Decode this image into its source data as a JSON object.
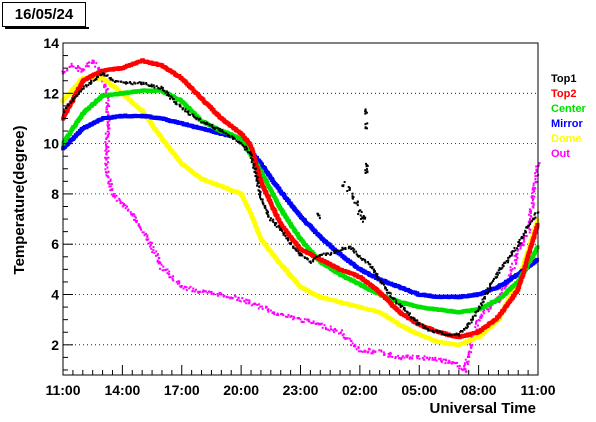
{
  "header": {
    "date": "16/05/24"
  },
  "chart_data": {
    "type": "scatter",
    "title": "",
    "xlabel": "Universal Time",
    "ylabel": "Temperature(degree)",
    "x_unit": "hours since 11:00 UT",
    "xlim": [
      0,
      24
    ],
    "ylim": [
      0.8,
      14
    ],
    "x_ticks": [
      {
        "v": 0,
        "label": "11:00"
      },
      {
        "v": 3,
        "label": "14:00"
      },
      {
        "v": 6,
        "label": "17:00"
      },
      {
        "v": 9,
        "label": "20:00"
      },
      {
        "v": 12,
        "label": "23:00"
      },
      {
        "v": 15,
        "label": "02:00"
      },
      {
        "v": 18,
        "label": "05:00"
      },
      {
        "v": 21,
        "label": "08:00"
      },
      {
        "v": 24,
        "label": "11:00"
      }
    ],
    "y_ticks": [
      2,
      4,
      6,
      8,
      10,
      12,
      14
    ],
    "grid": "horizontal dotted",
    "legend_position": "right",
    "series": [
      {
        "name": "Top1",
        "color": "#000000",
        "points": [
          [
            0,
            11.3
          ],
          [
            1,
            12.2
          ],
          [
            2,
            12.8
          ],
          [
            2.5,
            12.5
          ],
          [
            3,
            12.4
          ],
          [
            3.5,
            12.4
          ],
          [
            4,
            12.4
          ],
          [
            4.5,
            12.3
          ],
          [
            5,
            12.2
          ],
          [
            5.5,
            11.8
          ],
          [
            6,
            11.4
          ],
          [
            7,
            10.9
          ],
          [
            8,
            10.5
          ],
          [
            9,
            10.0
          ],
          [
            9.5,
            9.6
          ],
          [
            9.8,
            8.6
          ],
          [
            10,
            7.8
          ],
          [
            10.5,
            7.0
          ],
          [
            11,
            6.6
          ],
          [
            11.5,
            6.0
          ],
          [
            12,
            5.6
          ],
          [
            12.5,
            5.3
          ],
          [
            13,
            5.6
          ],
          [
            13.5,
            5.6
          ],
          [
            14,
            5.8
          ],
          [
            14.5,
            5.9
          ],
          [
            15,
            5.5
          ],
          [
            15.5,
            5.2
          ],
          [
            16,
            4.6
          ],
          [
            16.5,
            4.0
          ],
          [
            17,
            3.6
          ],
          [
            17.5,
            3.2
          ],
          [
            18,
            2.8
          ],
          [
            18.5,
            2.6
          ],
          [
            19,
            2.5
          ],
          [
            19.5,
            2.4
          ],
          [
            20,
            2.4
          ],
          [
            20.5,
            2.8
          ],
          [
            21,
            3.4
          ],
          [
            21.5,
            4.2
          ],
          [
            22,
            4.9
          ],
          [
            22.5,
            5.4
          ],
          [
            23,
            6.0
          ],
          [
            23.5,
            6.7
          ],
          [
            24,
            7.3
          ]
        ]
      },
      {
        "name": "Top1_outliers",
        "color": "#000000",
        "points": [
          [
            14.2,
            8.4
          ],
          [
            14.4,
            8.2
          ],
          [
            14.6,
            7.9
          ],
          [
            14.8,
            7.6
          ],
          [
            15,
            7.3
          ],
          [
            15.1,
            7.1
          ],
          [
            15.2,
            7.0
          ],
          [
            15.3,
            8.9
          ],
          [
            15.4,
            9.1
          ],
          [
            15.3,
            11.3
          ],
          [
            15.35,
            10.7
          ],
          [
            12.9,
            7.1
          ]
        ]
      },
      {
        "name": "Top2",
        "color": "#ff0000",
        "points": [
          [
            0,
            11.0
          ],
          [
            1,
            12.5
          ],
          [
            2,
            12.9
          ],
          [
            3,
            13.0
          ],
          [
            4,
            13.3
          ],
          [
            5,
            13.1
          ],
          [
            6,
            12.6
          ],
          [
            7,
            11.8
          ],
          [
            8,
            11.0
          ],
          [
            9,
            10.4
          ],
          [
            9.5,
            9.9
          ],
          [
            10,
            8.5
          ],
          [
            11,
            6.8
          ],
          [
            12,
            5.8
          ],
          [
            13,
            5.4
          ],
          [
            14,
            5.0
          ],
          [
            15,
            4.7
          ],
          [
            16,
            4.1
          ],
          [
            17,
            3.3
          ],
          [
            18,
            2.8
          ],
          [
            19,
            2.5
          ],
          [
            20,
            2.3
          ],
          [
            21,
            2.5
          ],
          [
            22,
            3.1
          ],
          [
            23,
            4.2
          ],
          [
            24,
            6.8
          ]
        ]
      },
      {
        "name": "Center",
        "color": "#00e000",
        "points": [
          [
            0,
            10.0
          ],
          [
            1,
            11.2
          ],
          [
            2,
            11.9
          ],
          [
            3,
            12.0
          ],
          [
            4,
            12.1
          ],
          [
            5,
            12.1
          ],
          [
            6,
            11.7
          ],
          [
            7,
            10.9
          ],
          [
            8,
            10.5
          ],
          [
            9,
            10.2
          ],
          [
            10,
            8.9
          ],
          [
            11,
            7.4
          ],
          [
            12,
            6.2
          ],
          [
            13,
            5.3
          ],
          [
            14,
            4.8
          ],
          [
            15,
            4.4
          ],
          [
            16,
            4.0
          ],
          [
            17,
            3.7
          ],
          [
            18,
            3.5
          ],
          [
            19,
            3.4
          ],
          [
            20,
            3.3
          ],
          [
            21,
            3.4
          ],
          [
            22,
            3.8
          ],
          [
            23,
            4.5
          ],
          [
            24,
            5.9
          ]
        ]
      },
      {
        "name": "Mirror",
        "color": "#0000ff",
        "points": [
          [
            0,
            9.8
          ],
          [
            1,
            10.6
          ],
          [
            2,
            11.0
          ],
          [
            3,
            11.1
          ],
          [
            4,
            11.1
          ],
          [
            5,
            11.0
          ],
          [
            6,
            10.8
          ],
          [
            7,
            10.6
          ],
          [
            8,
            10.4
          ],
          [
            9,
            10.2
          ],
          [
            10,
            9.2
          ],
          [
            11,
            8.1
          ],
          [
            12,
            7.1
          ],
          [
            13,
            6.3
          ],
          [
            14,
            5.6
          ],
          [
            15,
            5.0
          ],
          [
            16,
            4.6
          ],
          [
            17,
            4.3
          ],
          [
            18,
            4.0
          ],
          [
            19,
            3.9
          ],
          [
            20,
            3.9
          ],
          [
            21,
            4.0
          ],
          [
            22,
            4.3
          ],
          [
            23,
            4.8
          ],
          [
            24,
            5.4
          ]
        ]
      },
      {
        "name": "Dome",
        "color": "#ffff00",
        "points": [
          [
            0,
            11.7
          ],
          [
            1,
            12.6
          ],
          [
            2,
            12.6
          ],
          [
            3,
            12.0
          ],
          [
            4,
            11.3
          ],
          [
            5,
            10.2
          ],
          [
            6,
            9.2
          ],
          [
            7,
            8.6
          ],
          [
            8,
            8.3
          ],
          [
            9,
            8.0
          ],
          [
            9.5,
            7.2
          ],
          [
            10,
            6.2
          ],
          [
            11,
            5.2
          ],
          [
            12,
            4.3
          ],
          [
            13,
            3.9
          ],
          [
            14,
            3.7
          ],
          [
            15,
            3.5
          ],
          [
            16,
            3.3
          ],
          [
            17,
            2.8
          ],
          [
            18,
            2.4
          ],
          [
            19,
            2.1
          ],
          [
            20,
            2.0
          ],
          [
            21,
            2.3
          ],
          [
            22,
            3.0
          ],
          [
            23,
            4.5
          ],
          [
            24,
            7.0
          ]
        ]
      },
      {
        "name": "Out",
        "color": "#ff00ff",
        "points": [
          [
            0,
            12.8
          ],
          [
            0.5,
            13.1
          ],
          [
            1,
            12.9
          ],
          [
            1.5,
            13.3
          ],
          [
            2,
            12.7
          ],
          [
            2.3,
            11.8
          ],
          [
            2.2,
            9.0
          ],
          [
            2.5,
            8.0
          ],
          [
            3,
            7.6
          ],
          [
            3.5,
            7.2
          ],
          [
            4,
            6.6
          ],
          [
            4.5,
            5.9
          ],
          [
            5,
            5.1
          ],
          [
            5.5,
            4.7
          ],
          [
            6,
            4.3
          ],
          [
            7,
            4.1
          ],
          [
            8,
            4.0
          ],
          [
            9,
            3.8
          ],
          [
            10,
            3.5
          ],
          [
            11,
            3.2
          ],
          [
            12,
            3.0
          ],
          [
            13,
            2.8
          ],
          [
            14,
            2.5
          ],
          [
            15,
            1.8
          ],
          [
            16,
            1.7
          ],
          [
            17,
            1.5
          ],
          [
            18,
            1.5
          ],
          [
            19,
            1.4
          ],
          [
            19.5,
            1.3
          ],
          [
            20,
            1.2
          ],
          [
            20.3,
            0.9
          ],
          [
            20.6,
            2.0
          ],
          [
            21,
            3.0
          ],
          [
            22,
            3.8
          ],
          [
            22.5,
            4.5
          ],
          [
            23,
            5.7
          ],
          [
            23.5,
            6.5
          ],
          [
            24,
            9.2
          ]
        ]
      }
    ],
    "legend": [
      {
        "label": "Top1",
        "color": "#000000"
      },
      {
        "label": "Top2",
        "color": "#ff0000"
      },
      {
        "label": "Center",
        "color": "#00e000"
      },
      {
        "label": "Mirror",
        "color": "#0000ff"
      },
      {
        "label": "Dome",
        "color": "#ffff00"
      },
      {
        "label": "Out",
        "color": "#ff00ff"
      }
    ]
  }
}
